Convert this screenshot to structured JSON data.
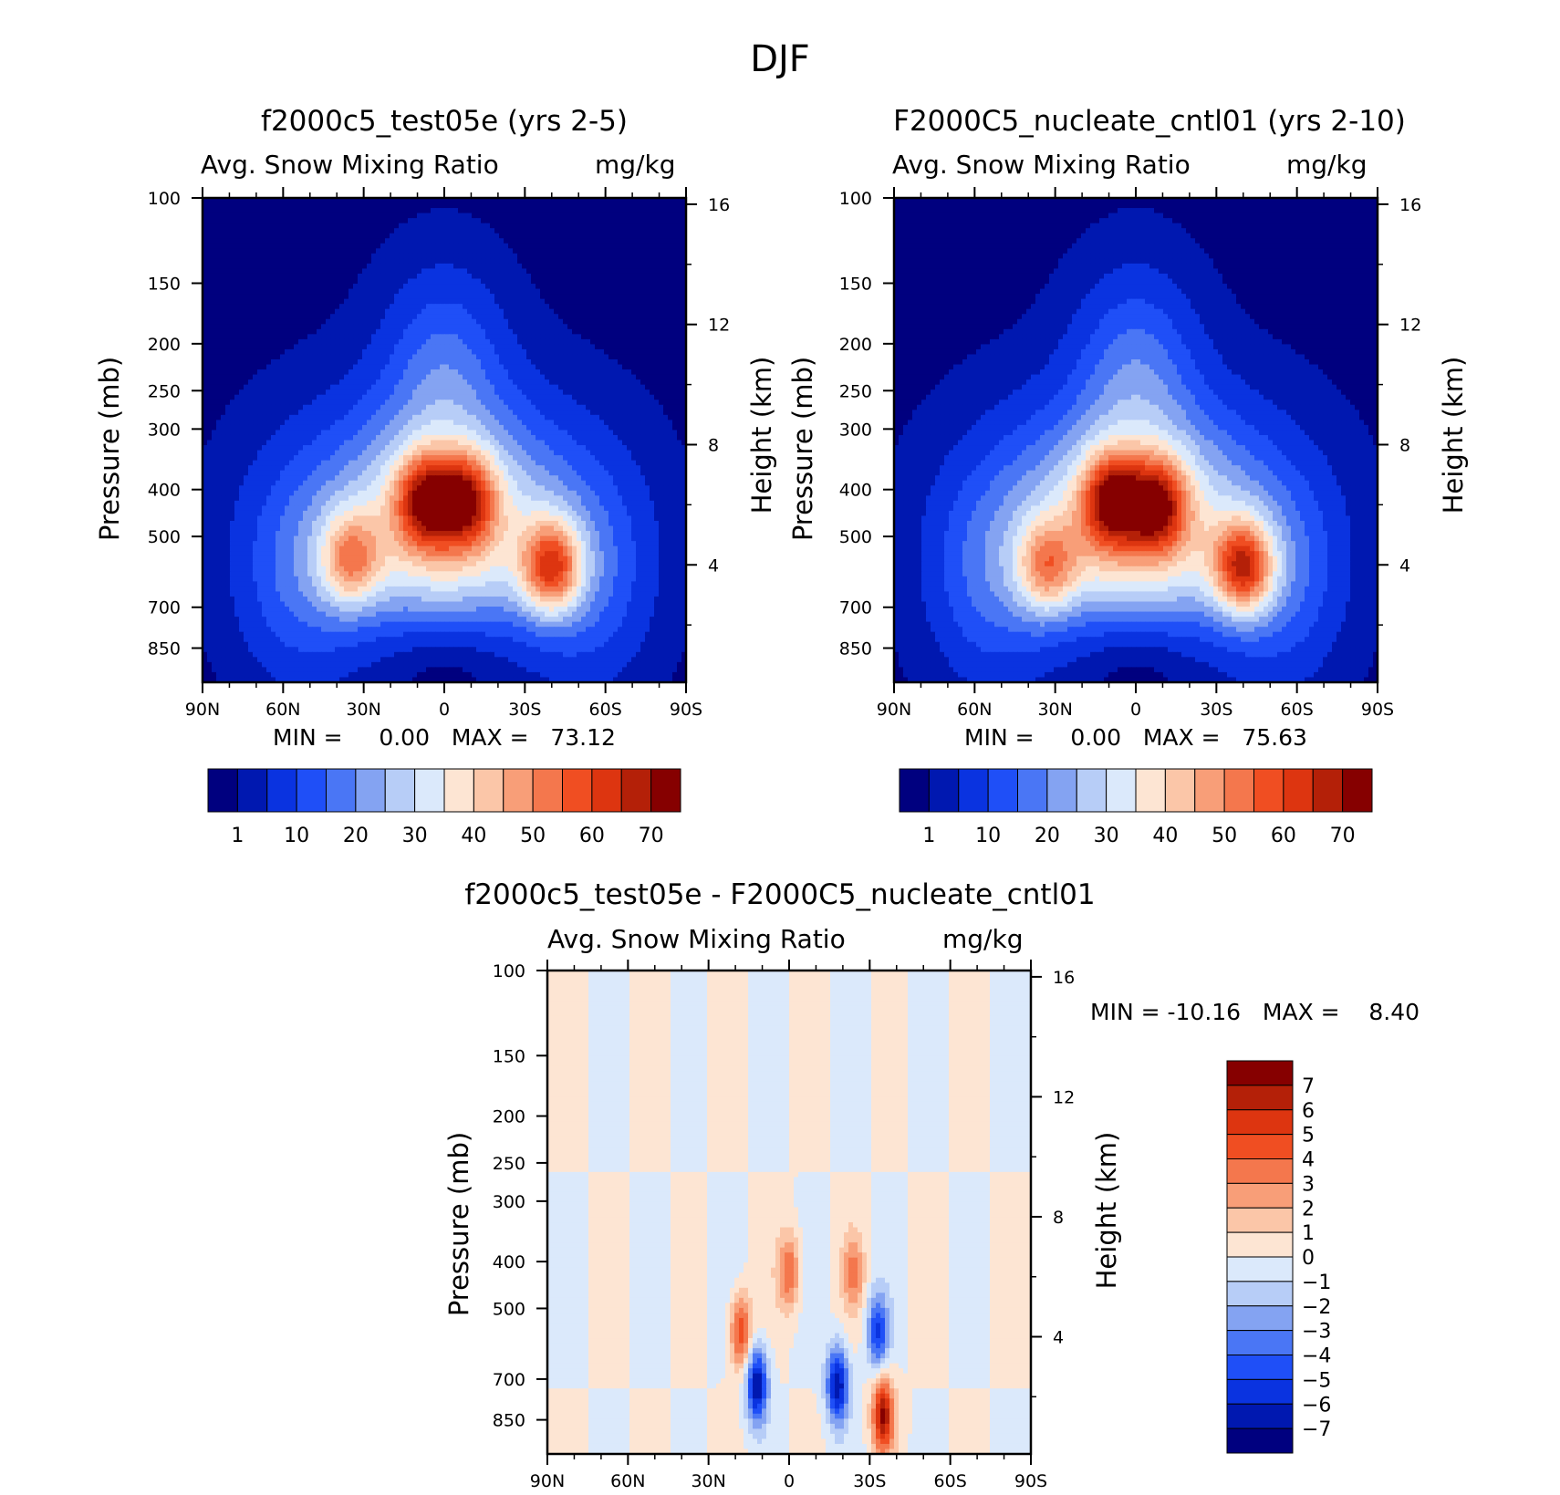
{
  "figure": {
    "season": "DJF",
    "panels": [
      {
        "title": "f2000c5_test05e (yrs 2-5)",
        "variable": "Avg. Snow Mixing Ratio",
        "units": "mg/kg",
        "stats": "MIN =     0.00   MAX =   73.12"
      },
      {
        "title": "F2000C5_nucleate_cntl01 (yrs 2-10)",
        "variable": "Avg. Snow Mixing Ratio",
        "units": "mg/kg",
        "stats": "MIN =     0.00   MAX =   75.63"
      },
      {
        "title": "f2000c5_test05e - F2000C5_nucleate_cntl01",
        "variable": "Avg. Snow Mixing Ratio",
        "units": "mg/kg",
        "stats": "MIN = -10.16   MAX =    8.40"
      }
    ],
    "axes": {
      "ylabel_left": "Pressure (mb)",
      "ylabel_right": "Height (km)",
      "xticks": [
        "90N",
        "60N",
        "30N",
        "0",
        "30S",
        "60S",
        "90S"
      ],
      "pressure_ticks": [
        "100",
        "150",
        "200",
        "250",
        "300",
        "400",
        "500",
        "700",
        "850"
      ],
      "height_ticks": [
        "16",
        "12",
        "8",
        "4"
      ]
    },
    "colorbar_main": {
      "labels": [
        "1",
        "10",
        "20",
        "30",
        "40",
        "50",
        "60",
        "70"
      ],
      "colors": [
        "#00007f",
        "#0018b0",
        "#0a33e0",
        "#1f4ff7",
        "#4a76f5",
        "#84a3f2",
        "#b7cdf7",
        "#dbe9fb",
        "#fde5d3",
        "#fbc6a8",
        "#f89e78",
        "#f4774d",
        "#f04e22",
        "#dd3510",
        "#b42008",
        "#860000"
      ]
    },
    "colorbar_diff": {
      "labels": [
        "7",
        "6",
        "5",
        "4",
        "3",
        "2",
        "1",
        "0",
        "-1",
        "-2",
        "-3",
        "-4",
        "-5",
        "-6",
        "-7"
      ],
      "colors": [
        "#860000",
        "#b42008",
        "#dd3510",
        "#f04e22",
        "#f4774d",
        "#f89e78",
        "#fbc6a8",
        "#fde5d3",
        "#dbe9fb",
        "#b7cdf7",
        "#84a3f2",
        "#4a76f5",
        "#1f4ff7",
        "#0a33e0",
        "#0018b0",
        "#00007f"
      ]
    }
  },
  "chart_data": [
    {
      "type": "heatmap",
      "title": "f2000c5_test05e (yrs 2-5)",
      "subtitle": "Avg. Snow Mixing Ratio",
      "units": "mg/kg",
      "x_ticks": [
        "90N",
        "60N",
        "30N",
        "0",
        "30S",
        "60S",
        "90S"
      ],
      "xlim": [
        90,
        -90
      ],
      "ylabel": "Pressure (mb)",
      "y_ticks": [
        100,
        150,
        200,
        250,
        300,
        400,
        500,
        700,
        850
      ],
      "y_scale": "log",
      "y_reversed": true,
      "ylabel_right": "Height (km)",
      "y_right_ticks": [
        16,
        12,
        8,
        4
      ],
      "min": 0.0,
      "max": 73.12,
      "levels": [
        1,
        5,
        10,
        15,
        20,
        25,
        30,
        35,
        40,
        45,
        50,
        55,
        60,
        65,
        70
      ],
      "features": [
        {
          "lat": -40,
          "p": 580,
          "value": 73
        },
        {
          "lat": -8,
          "p": 420,
          "value": 62
        },
        {
          "lat": 7,
          "p": 420,
          "value": 65
        },
        {
          "lat": 35,
          "p": 560,
          "value": 50
        },
        {
          "lat": 0,
          "p": 850,
          "value": 0
        },
        {
          "lat": 80,
          "p": 150,
          "value": 0
        },
        {
          "lat": -80,
          "p": 150,
          "value": 0
        }
      ]
    },
    {
      "type": "heatmap",
      "title": "F2000C5_nucleate_cntl01 (yrs 2-10)",
      "subtitle": "Avg. Snow Mixing Ratio",
      "units": "mg/kg",
      "x_ticks": [
        "90N",
        "60N",
        "30N",
        "0",
        "30S",
        "60S",
        "90S"
      ],
      "xlim": [
        90,
        -90
      ],
      "ylabel": "Pressure (mb)",
      "y_ticks": [
        100,
        150,
        200,
        250,
        300,
        400,
        500,
        700,
        850
      ],
      "y_scale": "log",
      "y_reversed": true,
      "ylabel_right": "Height (km)",
      "y_right_ticks": [
        16,
        12,
        8,
        4
      ],
      "min": 0.0,
      "max": 75.63,
      "levels": [
        1,
        5,
        10,
        15,
        20,
        25,
        30,
        35,
        40,
        45,
        50,
        55,
        60,
        65,
        70
      ],
      "features": [
        {
          "lat": -40,
          "p": 580,
          "value": 75
        },
        {
          "lat": -8,
          "p": 430,
          "value": 63
        },
        {
          "lat": 9,
          "p": 420,
          "value": 67
        },
        {
          "lat": 33,
          "p": 580,
          "value": 48
        },
        {
          "lat": 0,
          "p": 850,
          "value": 0
        },
        {
          "lat": 80,
          "p": 150,
          "value": 0
        },
        {
          "lat": -80,
          "p": 150,
          "value": 0
        }
      ]
    },
    {
      "type": "heatmap",
      "title": "f2000c5_test05e - F2000C5_nucleate_cntl01",
      "subtitle": "Avg. Snow Mixing Ratio",
      "units": "mg/kg",
      "x_ticks": [
        "90N",
        "60N",
        "30N",
        "0",
        "30S",
        "60S",
        "90S"
      ],
      "xlim": [
        90,
        -90
      ],
      "ylabel": "Pressure (mb)",
      "y_ticks": [
        100,
        150,
        200,
        250,
        300,
        400,
        500,
        700,
        850
      ],
      "y_scale": "log",
      "y_reversed": true,
      "ylabel_right": "Height (km)",
      "y_right_ticks": [
        16,
        12,
        8,
        4
      ],
      "min": -10.16,
      "max": 8.4,
      "levels": [
        -7,
        -6,
        -5,
        -4,
        -3,
        -2,
        -1,
        0,
        1,
        2,
        3,
        4,
        5,
        6,
        7
      ],
      "features": [
        {
          "lat": 18,
          "p": 560,
          "value": 5
        },
        {
          "lat": 0,
          "p": 420,
          "value": 4
        },
        {
          "lat": -24,
          "p": 420,
          "value": 3
        },
        {
          "lat": 12,
          "p": 720,
          "value": -7
        },
        {
          "lat": -18,
          "p": 720,
          "value": -7
        },
        {
          "lat": -35,
          "p": 830,
          "value": 7
        },
        {
          "lat": -33,
          "p": 560,
          "value": -5
        }
      ]
    }
  ]
}
